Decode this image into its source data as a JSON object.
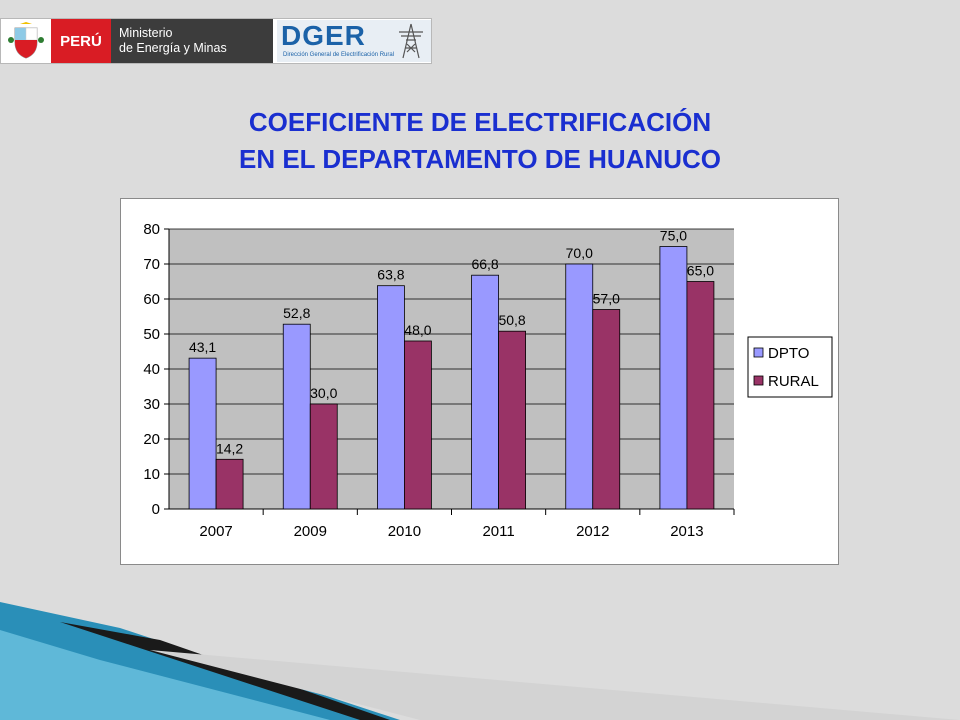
{
  "header": {
    "country_label": "PERÚ",
    "ministry_line1": "Ministerio",
    "ministry_line2": "de Energía y Minas",
    "dger_title": "DGER",
    "dger_subtitle": "Dirección General de Electrificación Rural"
  },
  "title": {
    "line1": "COEFICIENTE  DE ELECTRIFICACIÓN",
    "line2": "EN EL DEPARTAMENTO DE HUANUCO"
  },
  "colors": {
    "title": "#1a2fd0",
    "dpto": "#9999ff",
    "rural": "#993366",
    "plot_bg": "#c0c0c0",
    "peru_red": "#d91c24"
  },
  "chart_data": {
    "type": "bar",
    "title": "",
    "xlabel": "",
    "ylabel": "",
    "categories": [
      "2007",
      "2009",
      "2010",
      "2011",
      "2012",
      "2013"
    ],
    "series": [
      {
        "name": "DPTO",
        "values": [
          43.1,
          52.8,
          63.8,
          66.8,
          70.0,
          75.0
        ],
        "labels": [
          "43,1",
          "52,8",
          "63,8",
          "66,8",
          "70,0",
          "75,0"
        ]
      },
      {
        "name": "RURAL",
        "values": [
          14.2,
          30.0,
          48.0,
          50.8,
          57.0,
          65.0
        ],
        "labels": [
          "14,2",
          "30,0",
          "48,0",
          "50,8",
          "57,0",
          "65,0"
        ]
      }
    ],
    "ylim": [
      0,
      80
    ],
    "yticks": [
      0,
      10,
      20,
      30,
      40,
      50,
      60,
      70,
      80
    ],
    "grid": true,
    "legend_position": "right"
  }
}
